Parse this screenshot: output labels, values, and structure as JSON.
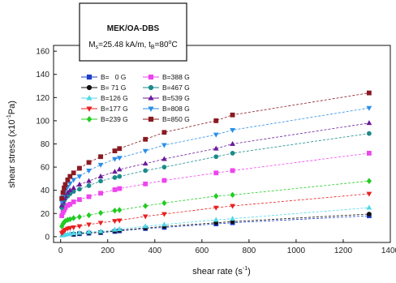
{
  "chart_data": {
    "type": "scatter",
    "title": "MEK/OA-DBS",
    "subtitle_line": {
      "ms_sym": "M",
      "ms_sub": "s",
      "ms_val": "=25.48 kA/m, t",
      "tb_sub": "B",
      "tb_val": "=80",
      "deg": "o",
      "unit": "C"
    },
    "xlabel": {
      "text": "shear rate (s",
      "sup": "-1",
      "close": ")"
    },
    "ylabel": {
      "text": "shear stress (x10",
      "sup": "-1",
      "close": "Pa)"
    },
    "xlim": [
      -30,
      1400
    ],
    "ylim": [
      -5,
      165
    ],
    "x_ticks": [
      0,
      200,
      400,
      600,
      800,
      1000,
      1200,
      1400
    ],
    "y_ticks": [
      0,
      20,
      40,
      60,
      80,
      100,
      120,
      140,
      160
    ],
    "grid": false,
    "legend_position": "upper-left",
    "x": [
      5,
      10,
      15,
      20,
      30,
      40,
      55,
      80,
      120,
      170,
      230,
      250,
      360,
      440,
      660,
      730,
      1310
    ],
    "series": [
      {
        "name": "B=   0 G",
        "color": "#1f3fc8",
        "marker": "square",
        "values": [
          null,
          null,
          null,
          null,
          null,
          null,
          2,
          2.5,
          3,
          3.5,
          4.5,
          5,
          7,
          8,
          11,
          12,
          18
        ]
      },
      {
        "name": "B= 71 G",
        "color": "#111111",
        "marker": "circle",
        "values": [
          null,
          null,
          null,
          null,
          null,
          null,
          2.2,
          2.8,
          3.3,
          3.8,
          5,
          5.5,
          7.5,
          8.8,
          12,
          13,
          19.5
        ]
      },
      {
        "name": "B=126 G",
        "color": "#4fd8e8",
        "marker": "triangle-up",
        "values": [
          1,
          1.2,
          1.5,
          1.8,
          2,
          2.5,
          3,
          3.3,
          4,
          4.5,
          6,
          6.5,
          9,
          10.5,
          14.5,
          15.5,
          25
        ]
      },
      {
        "name": "B=177 G",
        "color": "#e82020",
        "marker": "triangle-down",
        "values": [
          3,
          4,
          5,
          6,
          7,
          7.5,
          8,
          9,
          10.5,
          12,
          13.5,
          14,
          17.5,
          19.5,
          25,
          26.5,
          37
        ]
      },
      {
        "name": "B=239 G",
        "color": "#22cc22",
        "marker": "diamond",
        "values": [
          9,
          11,
          12.5,
          13.5,
          14.5,
          15,
          16,
          17,
          18.5,
          20.5,
          22.5,
          23,
          26.5,
          29,
          35,
          36,
          48
        ]
      },
      {
        "name": "B=388 G",
        "color": "#ee44ee",
        "marker": "square",
        "values": [
          18,
          21,
          23,
          25,
          27,
          28,
          30,
          32,
          34.5,
          37.5,
          40.5,
          41.5,
          45.5,
          48.5,
          55,
          57,
          72
        ]
      },
      {
        "name": "B=467 G",
        "color": "#1a8a8a",
        "marker": "circle",
        "values": [
          25,
          28,
          31,
          33,
          35,
          37,
          39,
          41,
          44,
          48,
          51,
          52,
          57,
          60,
          69,
          72,
          89
        ]
      },
      {
        "name": "B=539 G",
        "color": "#6a1a9a",
        "marker": "triangle-up",
        "values": [
          27,
          30,
          33,
          35,
          38,
          40,
          42,
          45,
          48,
          52,
          56,
          58,
          63,
          67,
          76,
          80,
          98
        ]
      },
      {
        "name": "B=808 G",
        "color": "#2a8ee8",
        "marker": "triangle-down",
        "values": [
          30,
          34,
          37,
          40,
          43,
          46,
          49,
          52,
          57,
          62,
          67,
          68,
          74,
          79,
          88,
          92,
          111
        ]
      },
      {
        "name": "B=850 G",
        "color": "#8a1a22",
        "marker": "square",
        "values": [
          33,
          38,
          42,
          45,
          49,
          52,
          55,
          59,
          64,
          69,
          74,
          76,
          84,
          90,
          100,
          105,
          124
        ]
      }
    ]
  }
}
